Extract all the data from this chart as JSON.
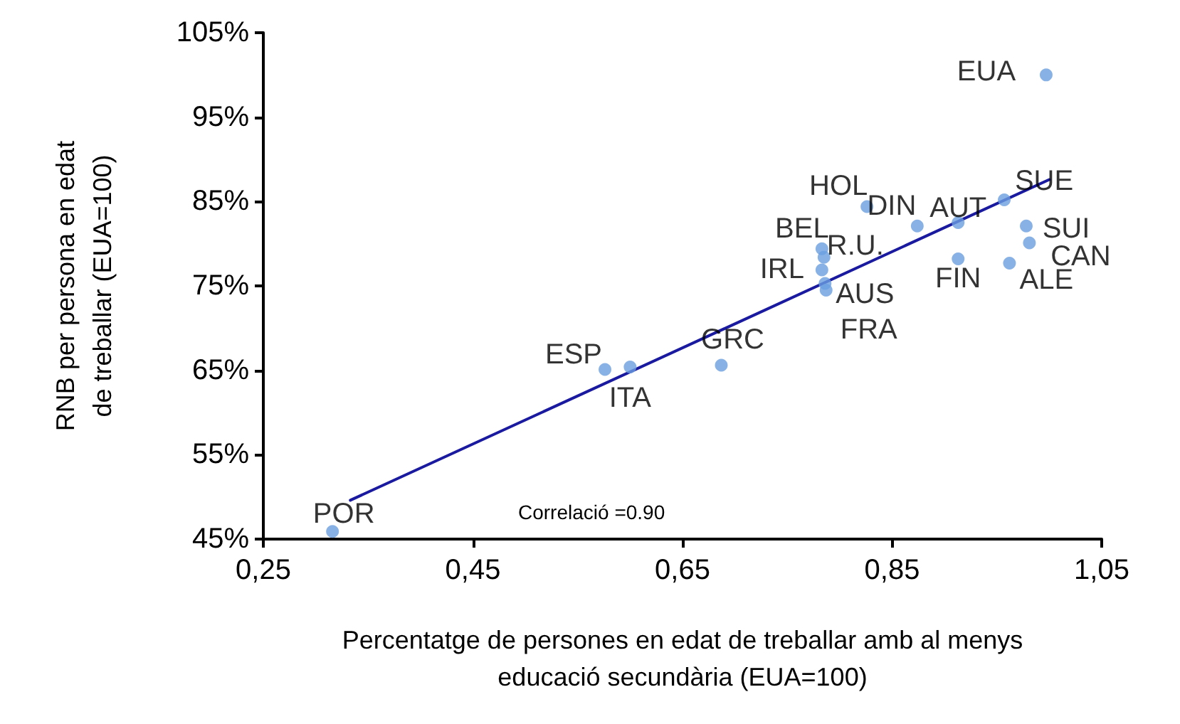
{
  "chart_data": {
    "type": "scatter",
    "xlabel": "Percentatge de persones en edat de treballar amb al menys\neducació secundària (EUA=100)",
    "ylabel": "RNB per persona en edat\nde treballar (EUA=100)",
    "xlim": [
      0.25,
      1.05
    ],
    "xticks": [
      {
        "value": 0.25,
        "label": "0,25"
      },
      {
        "value": 0.45,
        "label": "0,45"
      },
      {
        "value": 0.65,
        "label": "0,65"
      },
      {
        "value": 0.85,
        "label": "0,85"
      },
      {
        "value": 1.05,
        "label": "1,05"
      }
    ],
    "ylim": [
      45,
      105
    ],
    "yticks": [
      {
        "value": 45,
        "label": "45%"
      },
      {
        "value": 55,
        "label": "55%"
      },
      {
        "value": 65,
        "label": "65%"
      },
      {
        "value": 75,
        "label": "75%"
      },
      {
        "value": 85,
        "label": "85%"
      },
      {
        "value": 95,
        "label": "95%"
      },
      {
        "value": 105,
        "label": "105%"
      }
    ],
    "grid": false,
    "series": [
      {
        "type": "scatter",
        "color": "#6a9fe0",
        "marker": "circle",
        "x": [
          0.997,
          0.957,
          0.978,
          0.981,
          0.962,
          0.913,
          0.913,
          0.874,
          0.826,
          0.783,
          0.785,
          0.783,
          0.786,
          0.787,
          0.576,
          0.6,
          0.687,
          0.316
        ],
        "values": [
          100,
          85.2,
          82.1,
          80.1,
          77.7,
          82.5,
          78.2,
          82.1,
          84.4,
          79.4,
          78.4,
          76.9,
          75.3,
          74.5,
          65.1,
          65.4,
          65.6,
          45.9
        ]
      },
      {
        "type": "line",
        "color": "#1a1aa0",
        "marker": "none",
        "line_style": "solid",
        "x": [
          0.333,
          1.0
        ],
        "values": [
          49.6,
          87.6
        ]
      }
    ],
    "annotations": [
      {
        "text": "EUA",
        "x": 0.997,
        "y": 100
      },
      {
        "text": "SUE",
        "x": 0.957,
        "y": 85.2
      },
      {
        "text": "SUI",
        "x": 0.978,
        "y": 82.1
      },
      {
        "text": "CAN",
        "x": 0.981,
        "y": 80.1
      },
      {
        "text": "ALE",
        "x": 0.962,
        "y": 77.7
      },
      {
        "text": "AUT",
        "x": 0.913,
        "y": 82.5
      },
      {
        "text": "FIN",
        "x": 0.913,
        "y": 78.2
      },
      {
        "text": "DIN",
        "x": 0.874,
        "y": 82.1
      },
      {
        "text": "HOL",
        "x": 0.826,
        "y": 84.4
      },
      {
        "text": "BEL",
        "x": 0.783,
        "y": 79.4
      },
      {
        "text": "R.U.",
        "x": 0.785,
        "y": 78.4
      },
      {
        "text": "IRL",
        "x": 0.783,
        "y": 76.9
      },
      {
        "text": "AUS",
        "x": 0.786,
        "y": 75.3
      },
      {
        "text": "FRA",
        "x": 0.787,
        "y": 74.5
      },
      {
        "text": "ESP",
        "x": 0.576,
        "y": 65.1
      },
      {
        "text": "ITA",
        "x": 0.6,
        "y": 65.4
      },
      {
        "text": "GRC",
        "x": 0.687,
        "y": 65.6
      },
      {
        "text": "POR",
        "x": 0.316,
        "y": 45.9
      },
      "Correlació =0.90"
    ]
  }
}
